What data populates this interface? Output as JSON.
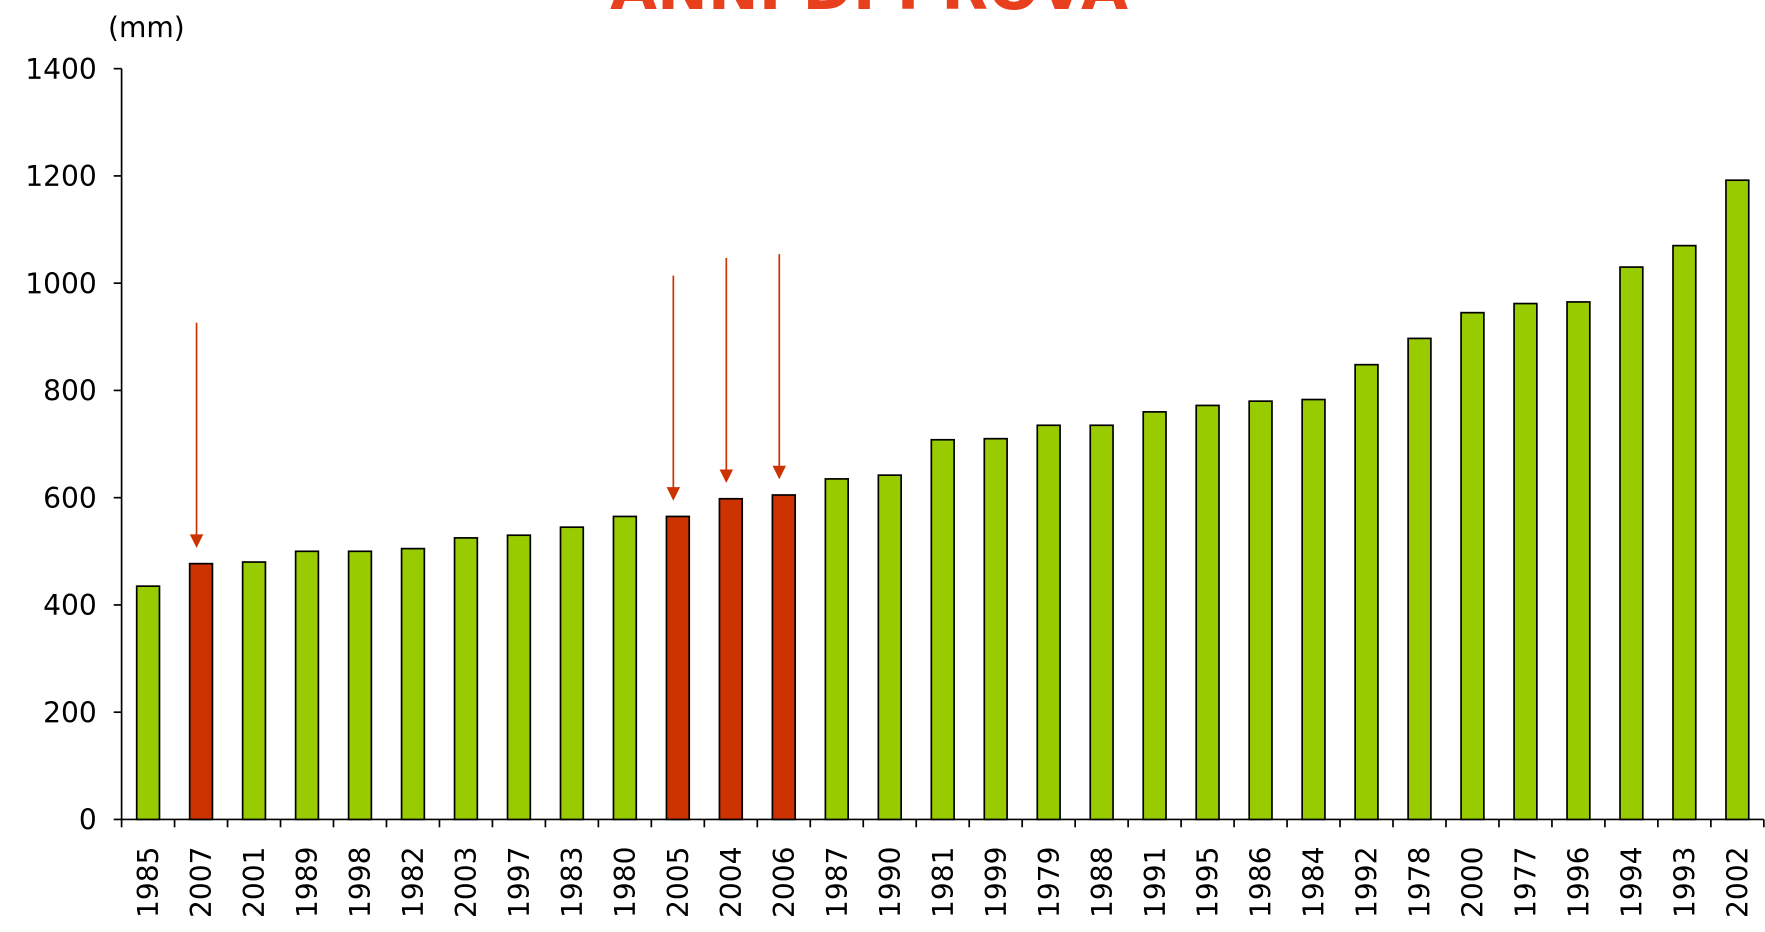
{
  "chart_data": {
    "type": "bar",
    "title": "ANNI DI PROVA",
    "y_label": "(mm)",
    "categories": [
      "1985",
      "2007",
      "2001",
      "1989",
      "1998",
      "1982",
      "2003",
      "1997",
      "1983",
      "1980",
      "2005",
      "2004",
      "2006",
      "1987",
      "1990",
      "1981",
      "1999",
      "1979",
      "1988",
      "1991",
      "1995",
      "1986",
      "1984",
      "1992",
      "1978",
      "2000",
      "1977",
      "1996",
      "1994",
      "1993",
      "2002"
    ],
    "values": [
      435,
      477,
      480,
      500,
      500,
      505,
      525,
      530,
      545,
      565,
      565,
      598,
      605,
      635,
      642,
      708,
      710,
      735,
      735,
      760,
      772,
      780,
      783,
      848,
      897,
      945,
      962,
      965,
      1030,
      1070,
      1192
    ],
    "colors": [
      "#99cc00",
      "#cc3300",
      "#99cc00",
      "#99cc00",
      "#99cc00",
      "#99cc00",
      "#99cc00",
      "#99cc00",
      "#99cc00",
      "#99cc00",
      "#cc3300",
      "#cc3300",
      "#cc3300",
      "#99cc00",
      "#99cc00",
      "#99cc00",
      "#99cc00",
      "#99cc00",
      "#99cc00",
      "#99cc00",
      "#99cc00",
      "#99cc00",
      "#99cc00",
      "#99cc00",
      "#99cc00",
      "#99cc00",
      "#99cc00",
      "#99cc00",
      "#99cc00",
      "#99cc00",
      "#99cc00"
    ],
    "highlight_color": "#cc3300",
    "ylim": [
      0,
      1400
    ],
    "yticks": [
      0,
      200,
      400,
      600,
      800,
      1000,
      1200,
      1400
    ],
    "grid": false
  }
}
